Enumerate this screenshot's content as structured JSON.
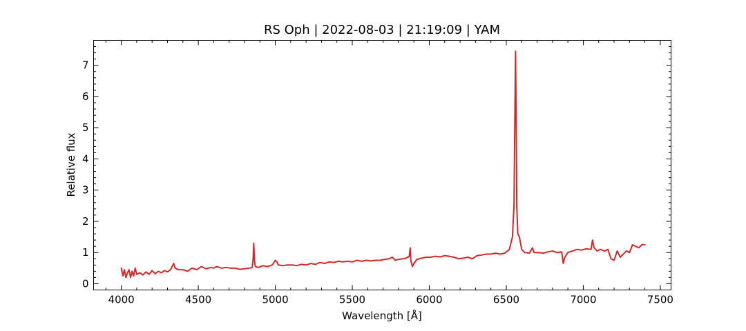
{
  "chart_data": {
    "type": "line",
    "title": "RS Oph | 2022-08-03 | 21:19:09 | YAM",
    "xlabel": "Wavelength [Å]",
    "ylabel": "Relative flux",
    "xlim": [
      3820,
      7570
    ],
    "ylim": [
      -0.2,
      7.8
    ],
    "x_ticks": [
      4000,
      4500,
      5000,
      5500,
      6000,
      6500,
      7000,
      7500
    ],
    "y_ticks": [
      0,
      1,
      2,
      3,
      4,
      5,
      6,
      7
    ],
    "x_minor_step": 100,
    "y_minor_step": 0.2,
    "grid": false,
    "ticks_direction": "in",
    "series": [
      {
        "color": "#d62728",
        "points": [
          [
            4000,
            0.5
          ],
          [
            4010,
            0.25
          ],
          [
            4020,
            0.45
          ],
          [
            4030,
            0.2
          ],
          [
            4040,
            0.35
          ],
          [
            4050,
            0.45
          ],
          [
            4060,
            0.2
          ],
          [
            4070,
            0.4
          ],
          [
            4080,
            0.25
          ],
          [
            4090,
            0.5
          ],
          [
            4100,
            0.3
          ],
          [
            4120,
            0.35
          ],
          [
            4140,
            0.28
          ],
          [
            4160,
            0.38
          ],
          [
            4180,
            0.3
          ],
          [
            4200,
            0.42
          ],
          [
            4220,
            0.32
          ],
          [
            4240,
            0.4
          ],
          [
            4260,
            0.35
          ],
          [
            4280,
            0.42
          ],
          [
            4300,
            0.38
          ],
          [
            4320,
            0.45
          ],
          [
            4340,
            0.65
          ],
          [
            4350,
            0.5
          ],
          [
            4370,
            0.45
          ],
          [
            4400,
            0.45
          ],
          [
            4430,
            0.4
          ],
          [
            4460,
            0.5
          ],
          [
            4490,
            0.45
          ],
          [
            4520,
            0.55
          ],
          [
            4550,
            0.48
          ],
          [
            4580,
            0.52
          ],
          [
            4600,
            0.5
          ],
          [
            4620,
            0.55
          ],
          [
            4650,
            0.5
          ],
          [
            4680,
            0.52
          ],
          [
            4710,
            0.5
          ],
          [
            4740,
            0.5
          ],
          [
            4770,
            0.46
          ],
          [
            4800,
            0.48
          ],
          [
            4830,
            0.5
          ],
          [
            4850,
            0.52
          ],
          [
            4856,
            0.8
          ],
          [
            4860,
            1.3
          ],
          [
            4864,
            0.8
          ],
          [
            4870,
            0.55
          ],
          [
            4890,
            0.52
          ],
          [
            4920,
            0.58
          ],
          [
            4950,
            0.55
          ],
          [
            4980,
            0.6
          ],
          [
            5000,
            0.75
          ],
          [
            5010,
            0.7
          ],
          [
            5020,
            0.6
          ],
          [
            5050,
            0.58
          ],
          [
            5080,
            0.6
          ],
          [
            5110,
            0.6
          ],
          [
            5140,
            0.58
          ],
          [
            5170,
            0.62
          ],
          [
            5200,
            0.6
          ],
          [
            5230,
            0.65
          ],
          [
            5260,
            0.62
          ],
          [
            5290,
            0.68
          ],
          [
            5320,
            0.65
          ],
          [
            5350,
            0.7
          ],
          [
            5380,
            0.68
          ],
          [
            5410,
            0.72
          ],
          [
            5440,
            0.7
          ],
          [
            5470,
            0.72
          ],
          [
            5500,
            0.7
          ],
          [
            5530,
            0.75
          ],
          [
            5560,
            0.72
          ],
          [
            5590,
            0.75
          ],
          [
            5620,
            0.73
          ],
          [
            5650,
            0.75
          ],
          [
            5680,
            0.75
          ],
          [
            5710,
            0.78
          ],
          [
            5740,
            0.8
          ],
          [
            5760,
            0.85
          ],
          [
            5780,
            0.75
          ],
          [
            5800,
            0.78
          ],
          [
            5830,
            0.8
          ],
          [
            5850,
            0.82
          ],
          [
            5870,
            0.88
          ],
          [
            5876,
            1.15
          ],
          [
            5880,
            0.75
          ],
          [
            5890,
            0.55
          ],
          [
            5900,
            0.65
          ],
          [
            5920,
            0.78
          ],
          [
            5950,
            0.82
          ],
          [
            5980,
            0.85
          ],
          [
            6010,
            0.85
          ],
          [
            6040,
            0.88
          ],
          [
            6070,
            0.86
          ],
          [
            6100,
            0.9
          ],
          [
            6130,
            0.88
          ],
          [
            6160,
            0.85
          ],
          [
            6190,
            0.8
          ],
          [
            6220,
            0.82
          ],
          [
            6250,
            0.85
          ],
          [
            6280,
            0.8
          ],
          [
            6310,
            0.9
          ],
          [
            6340,
            0.92
          ],
          [
            6370,
            0.95
          ],
          [
            6400,
            0.95
          ],
          [
            6430,
            0.98
          ],
          [
            6460,
            0.95
          ],
          [
            6490,
            0.98
          ],
          [
            6520,
            1.1
          ],
          [
            6540,
            1.5
          ],
          [
            6550,
            2.5
          ],
          [
            6556,
            5.5
          ],
          [
            6560,
            7.45
          ],
          [
            6564,
            5.5
          ],
          [
            6568,
            2.5
          ],
          [
            6575,
            1.6
          ],
          [
            6585,
            1.5
          ],
          [
            6600,
            1.1
          ],
          [
            6620,
            1.0
          ],
          [
            6650,
            0.98
          ],
          [
            6670,
            1.15
          ],
          [
            6680,
            1.0
          ],
          [
            6710,
            1.0
          ],
          [
            6740,
            0.98
          ],
          [
            6770,
            1.02
          ],
          [
            6800,
            1.05
          ],
          [
            6830,
            1.0
          ],
          [
            6860,
            1.02
          ],
          [
            6870,
            0.65
          ],
          [
            6880,
            0.85
          ],
          [
            6900,
            1.0
          ],
          [
            6930,
            1.05
          ],
          [
            6960,
            1.1
          ],
          [
            6990,
            1.08
          ],
          [
            7020,
            1.12
          ],
          [
            7050,
            1.1
          ],
          [
            7060,
            1.4
          ],
          [
            7070,
            1.15
          ],
          [
            7090,
            1.05
          ],
          [
            7110,
            1.1
          ],
          [
            7140,
            1.05
          ],
          [
            7160,
            1.1
          ],
          [
            7180,
            0.8
          ],
          [
            7200,
            0.75
          ],
          [
            7220,
            1.05
          ],
          [
            7240,
            0.85
          ],
          [
            7260,
            0.95
          ],
          [
            7280,
            1.05
          ],
          [
            7300,
            1.0
          ],
          [
            7320,
            1.25
          ],
          [
            7340,
            1.2
          ],
          [
            7360,
            1.15
          ],
          [
            7380,
            1.25
          ],
          [
            7400,
            1.25
          ]
        ]
      }
    ]
  }
}
